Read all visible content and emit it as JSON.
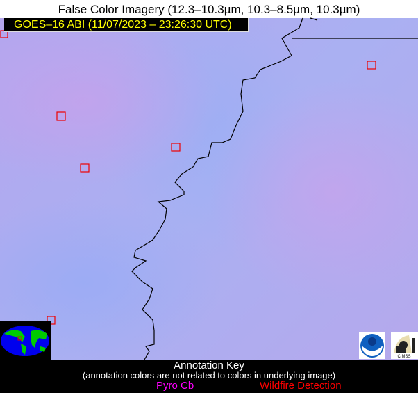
{
  "title": "False Color Imagery (12.3–10.3µm, 10.3–8.5µm, 10.3µm)",
  "satellite_label": "GOES–16 ABI (11/07/2023 – 23:26:30 UTC)",
  "logos": {
    "noaa": "NOAA",
    "cimss": "CIMSS"
  },
  "annotation_key": {
    "title": "Annotation Key",
    "subtitle": "(annotation colors are not related to colors in underlying image)",
    "items": [
      {
        "label": "Pyro Cb",
        "color": "#ff00ff"
      },
      {
        "label": "Wildfire Detection",
        "color": "#ff0000"
      }
    ]
  },
  "colors": {
    "border_line": "#000000",
    "wildfire_marker": "#ff0000",
    "label_text": "#ffff00"
  }
}
